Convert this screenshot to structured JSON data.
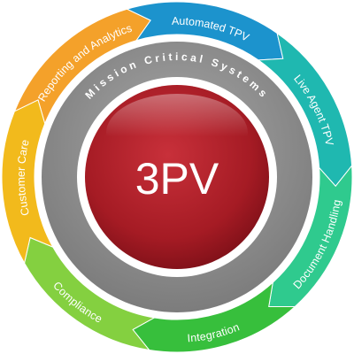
{
  "center": {
    "label": "3PV",
    "color": "#a51b24"
  },
  "ring": {
    "label": "Mission Critical Systems",
    "color": "#8c8c8c"
  },
  "segments": [
    {
      "label": "Reporting and Analytics",
      "color": "#f4a12a"
    },
    {
      "label": "Automated TPV",
      "color": "#1c93cd"
    },
    {
      "label": "Live Agent TPV",
      "color": "#1fb8b0"
    },
    {
      "label": "Document Handling",
      "color": "#2fca8e"
    },
    {
      "label": "Integration",
      "color": "#37bf3c"
    },
    {
      "label": "Compliance",
      "color": "#84d040"
    },
    {
      "label": "Customer Care",
      "color": "#f2ba1c"
    }
  ]
}
